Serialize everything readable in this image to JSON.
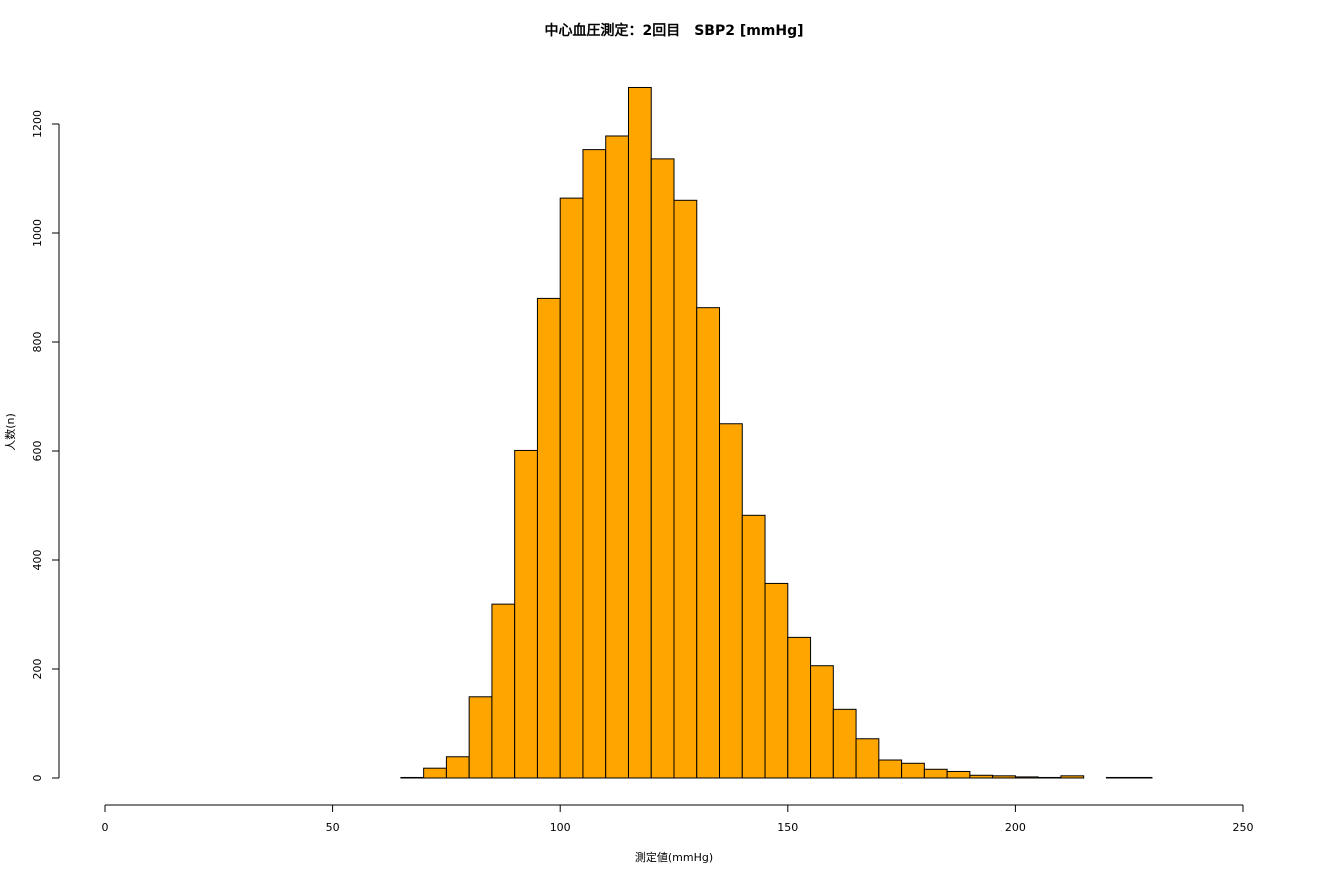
{
  "chart_data": {
    "type": "bar",
    "title": "中心血圧測定：2回目　SBP2 [mmHg]",
    "xlabel": "測定値(mmHg)",
    "ylabel": "人数(n)",
    "xlim": [
      0,
      250
    ],
    "ylim": [
      0,
      1200
    ],
    "x_ticks": [
      0,
      50,
      100,
      150,
      200,
      250
    ],
    "y_ticks": [
      0,
      200,
      400,
      600,
      800,
      1000,
      1200
    ],
    "bin_width": 5,
    "bins": [
      {
        "start": 65,
        "end": 70,
        "count": 1
      },
      {
        "start": 70,
        "end": 75,
        "count": 18
      },
      {
        "start": 75,
        "end": 80,
        "count": 39
      },
      {
        "start": 80,
        "end": 85,
        "count": 149
      },
      {
        "start": 85,
        "end": 90,
        "count": 319
      },
      {
        "start": 90,
        "end": 95,
        "count": 601
      },
      {
        "start": 95,
        "end": 100,
        "count": 880
      },
      {
        "start": 100,
        "end": 105,
        "count": 1064
      },
      {
        "start": 105,
        "end": 110,
        "count": 1153
      },
      {
        "start": 110,
        "end": 115,
        "count": 1178
      },
      {
        "start": 115,
        "end": 120,
        "count": 1267
      },
      {
        "start": 120,
        "end": 125,
        "count": 1136
      },
      {
        "start": 125,
        "end": 130,
        "count": 1060
      },
      {
        "start": 130,
        "end": 135,
        "count": 863
      },
      {
        "start": 135,
        "end": 140,
        "count": 650
      },
      {
        "start": 140,
        "end": 145,
        "count": 482
      },
      {
        "start": 145,
        "end": 150,
        "count": 357
      },
      {
        "start": 150,
        "end": 155,
        "count": 258
      },
      {
        "start": 155,
        "end": 160,
        "count": 206
      },
      {
        "start": 160,
        "end": 165,
        "count": 126
      },
      {
        "start": 165,
        "end": 170,
        "count": 72
      },
      {
        "start": 170,
        "end": 175,
        "count": 33
      },
      {
        "start": 175,
        "end": 180,
        "count": 27
      },
      {
        "start": 180,
        "end": 185,
        "count": 16
      },
      {
        "start": 185,
        "end": 190,
        "count": 12
      },
      {
        "start": 190,
        "end": 195,
        "count": 5
      },
      {
        "start": 195,
        "end": 200,
        "count": 4
      },
      {
        "start": 200,
        "end": 205,
        "count": 2
      },
      {
        "start": 205,
        "end": 210,
        "count": 1
      },
      {
        "start": 210,
        "end": 215,
        "count": 4
      },
      {
        "start": 215,
        "end": 220,
        "count": 0
      },
      {
        "start": 220,
        "end": 225,
        "count": 1
      },
      {
        "start": 225,
        "end": 230,
        "count": 1
      }
    ],
    "bar_color": "#FFA500",
    "bar_border_color": "#000000",
    "grid": false
  }
}
